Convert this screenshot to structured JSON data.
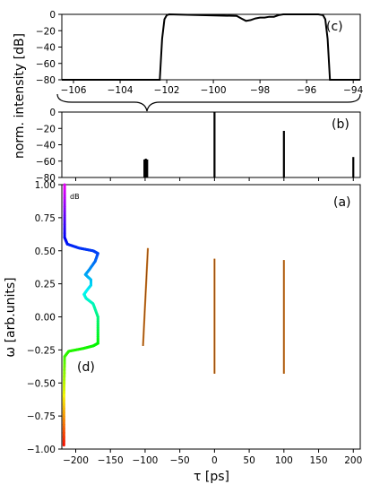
{
  "chart_data": [
    {
      "id": "c",
      "panel_label": "(c)",
      "type": "line",
      "xlim": [
        -106.5,
        -93.7
      ],
      "ylim": [
        -80,
        0
      ],
      "x_ticks": [
        -106,
        -104,
        -102,
        -100,
        -98,
        -96,
        -94
      ],
      "y_ticks": [
        0,
        -20,
        -40,
        -60,
        -80
      ],
      "series": [
        {
          "x": [
            -106.5,
            -102.3,
            -102.2,
            -102.1,
            -102.0,
            -101.9,
            -99.0,
            -98.8,
            -98.6,
            -98.4,
            -98.2,
            -98.0,
            -97.8,
            -97.6,
            -97.4,
            -97.2,
            -97.0,
            -95.5,
            -95.3,
            -95.2,
            -95.1,
            -95.0,
            -93.7
          ],
          "y": [
            -80,
            -80,
            -30,
            -6,
            -1,
            0,
            -2,
            -5,
            -8,
            -7,
            -5,
            -4,
            -4,
            -3,
            -3,
            -1,
            0,
            0,
            -1,
            -6,
            -30,
            -80,
            -80
          ]
        }
      ]
    },
    {
      "id": "b",
      "panel_label": "(b)",
      "type": "bar",
      "xlim": [
        -220,
        210
      ],
      "ylim": [
        -80,
        0
      ],
      "y_ticks": [
        0,
        -20,
        -40,
        -60,
        -80
      ],
      "lines": [
        {
          "x": -101,
          "top": -58
        },
        {
          "x": -99,
          "top": -57
        },
        {
          "x": -97,
          "top": -58
        },
        {
          "x": 0,
          "top": 0
        },
        {
          "x": 100,
          "top": -23
        },
        {
          "x": 200,
          "top": -55
        }
      ]
    },
    {
      "id": "a",
      "panel_label": "(a)",
      "type": "line",
      "xlabel": "τ [ps]",
      "ylabel": "ω [arb.units]",
      "xlim": [
        -220,
        210
      ],
      "ylim": [
        -1.0,
        1.0
      ],
      "x_ticks": [
        -200,
        -150,
        -100,
        -50,
        0,
        50,
        100,
        150,
        200
      ],
      "y_ticks": [
        1.0,
        0.75,
        0.5,
        0.25,
        0.0,
        -0.25,
        -0.5,
        -0.75,
        -1.0
      ],
      "segments": [
        {
          "x1": -103,
          "y1": -0.22,
          "x2": -96,
          "y2": 0.52
        },
        {
          "x1": 0,
          "y1": -0.43,
          "x2": 0,
          "y2": 0.44
        },
        {
          "x1": 100,
          "y1": -0.43,
          "x2": 100,
          "y2": 0.43
        }
      ],
      "spectrum": {
        "panel_label": "(d)",
        "db_label": "dB",
        "omega": [
          -0.97,
          -0.6,
          -0.3,
          -0.26,
          -0.24,
          -0.22,
          -0.2,
          0.0,
          0.1,
          0.14,
          0.17,
          0.2,
          0.24,
          0.28,
          0.32,
          0.36,
          0.42,
          0.48,
          0.5,
          0.52,
          0.55,
          0.6,
          1.0
        ],
        "tau": [
          -217,
          -217,
          -216,
          -210,
          -190,
          -175,
          -168,
          -168,
          -175,
          -185,
          -188,
          -184,
          -178,
          -178,
          -186,
          -180,
          -172,
          -168,
          -175,
          -195,
          -212,
          -216,
          -216
        ]
      }
    }
  ],
  "shared_ylabel": "norm. intensity [dB]",
  "colors": {
    "axis": "#000000",
    "curve": "#000000",
    "segment": "#8a4513",
    "segment_highlight": "#e08a2a"
  }
}
